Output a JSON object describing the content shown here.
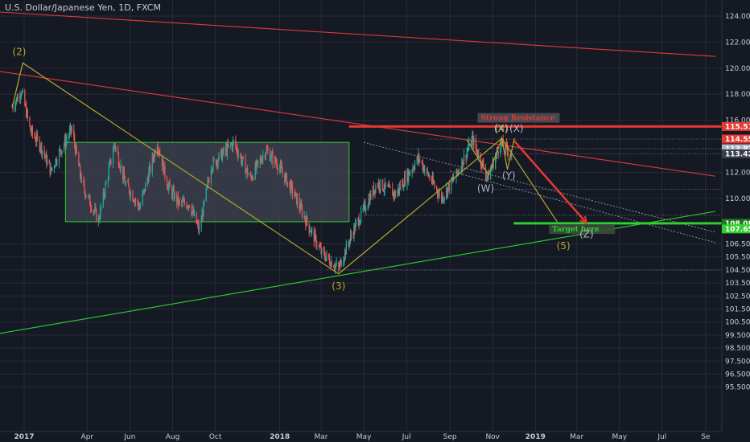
{
  "symbol_title": "U.S. Dollar/Japanese Yen, 1D, FXCM",
  "colors": {
    "background": "#151924",
    "bull": "#26a69a",
    "bear": "#ef5350",
    "grid": "#262b38",
    "resistance": "#e53935",
    "support": "#2fd02f",
    "wave": "#b8a72a",
    "corrective": "#b0b7c3",
    "range_box": "#3b3f4c"
  },
  "chart_data": {
    "type": "candlestick",
    "title": "U.S. Dollar/Japanese Yen, 1D, FXCM",
    "x_axis": {
      "start": "2017-01-01",
      "end": "2019-09-15",
      "ticks": [
        {
          "label": "2017",
          "date": "2017-01-01",
          "bold": true
        },
        {
          "label": "Apr",
          "date": "2017-04-01"
        },
        {
          "label": "Jun",
          "date": "2017-06-01"
        },
        {
          "label": "Aug",
          "date": "2017-08-01"
        },
        {
          "label": "Oct",
          "date": "2017-10-01"
        },
        {
          "label": "2018",
          "date": "2018-01-01",
          "bold": true
        },
        {
          "label": "Mar",
          "date": "2018-03-01"
        },
        {
          "label": "May",
          "date": "2018-05-01"
        },
        {
          "label": "Jul",
          "date": "2018-07-01"
        },
        {
          "label": "Sep",
          "date": "2018-09-01"
        },
        {
          "label": "Nov",
          "date": "2018-11-01"
        },
        {
          "label": "2019",
          "date": "2019-01-01",
          "bold": true
        },
        {
          "label": "Mar",
          "date": "2019-03-01"
        },
        {
          "label": "May",
          "date": "2019-05-01"
        },
        {
          "label": "Jul",
          "date": "2019-07-01"
        },
        {
          "label": "Se",
          "date": "2019-09-01"
        }
      ]
    },
    "y_axis": {
      "min": 95.0,
      "max": 124.5,
      "ticks": [
        "124.000",
        "122.000",
        "120.000",
        "118.000",
        "116.000",
        "114.557",
        "113.812",
        "113.421",
        "112.000",
        "110.000",
        "108.084",
        "107.652",
        "106.500",
        "105.500",
        "104.500",
        "103.500",
        "102.500",
        "101.500",
        "100.500",
        "99.500",
        "98.500",
        "97.500",
        "96.500",
        "95.500"
      ]
    },
    "price_path": [
      [
        "2016-12-15",
        117.0
      ],
      [
        "2016-12-28",
        118.3
      ],
      [
        "2017-01-10",
        115.2
      ],
      [
        "2017-01-25",
        114.0
      ],
      [
        "2017-02-08",
        112.1
      ],
      [
        "2017-02-20",
        113.5
      ],
      [
        "2017-03-10",
        115.3
      ],
      [
        "2017-03-25",
        111.0
      ],
      [
        "2017-04-17",
        108.3
      ],
      [
        "2017-05-10",
        114.2
      ],
      [
        "2017-05-25",
        111.2
      ],
      [
        "2017-06-15",
        109.3
      ],
      [
        "2017-07-10",
        114.3
      ],
      [
        "2017-07-25",
        111.0
      ],
      [
        "2017-08-10",
        109.6
      ],
      [
        "2017-08-25",
        109.6
      ],
      [
        "2017-09-08",
        107.5
      ],
      [
        "2017-09-25",
        112.5
      ],
      [
        "2017-10-27",
        114.3
      ],
      [
        "2017-11-20",
        111.5
      ],
      [
        "2017-12-12",
        113.7
      ],
      [
        "2017-12-29",
        112.6
      ],
      [
        "2018-01-20",
        110.5
      ],
      [
        "2018-02-10",
        108.0
      ],
      [
        "2018-03-02",
        105.8
      ],
      [
        "2018-03-26",
        104.6
      ],
      [
        "2018-04-15",
        107.4
      ],
      [
        "2018-05-20",
        111.2
      ],
      [
        "2018-06-15",
        110.3
      ],
      [
        "2018-07-18",
        113.1
      ],
      [
        "2018-08-20",
        110.0
      ],
      [
        "2018-09-10",
        111.8
      ],
      [
        "2018-10-03",
        114.5
      ],
      [
        "2018-10-25",
        111.6
      ],
      [
        "2018-11-12",
        114.2
      ],
      [
        "2018-11-28",
        113.4
      ]
    ],
    "drawings": {
      "range_box": {
        "from": "2017-03-01",
        "to": "2018-04-10",
        "top": 114.3,
        "bottom": 108.2
      },
      "horizontal_lines": [
        {
          "name": "resistance",
          "price": 115.517,
          "from": "2018-04-10",
          "to": "2019-09-15"
        },
        {
          "name": "support",
          "price": 108.084,
          "from": "2018-12-01",
          "to": "2019-09-15"
        }
      ],
      "trendlines": [
        {
          "name": "red-trendline-upper",
          "from": [
            "2016-10-01",
            124.5
          ],
          "to": [
            "2019-09-15",
            120.9
          ]
        },
        {
          "name": "red-trendline-lower",
          "from": [
            "2016-10-01",
            120.2
          ],
          "to": [
            "2019-09-15",
            111.7
          ]
        },
        {
          "name": "green-trendline",
          "from": [
            "2016-10-01",
            99.1
          ],
          "to": [
            "2019-09-15",
            109.0
          ]
        },
        {
          "name": "dotted-channel-1",
          "from": [
            "2018-05-01",
            114.3
          ],
          "to": [
            "2019-09-15",
            107.4
          ]
        },
        {
          "name": "dotted-channel-2",
          "from": [
            "2018-09-01",
            112.1
          ],
          "to": [
            "2019-09-15",
            106.6
          ]
        }
      ],
      "elliott_impulse": [
        [
          "2016-12-15",
          117.0
        ],
        [
          "2016-12-30",
          120.4
        ],
        [
          "2018-03-26",
          104.2
        ],
        [
          "2018-11-14",
          114.6
        ],
        [
          "2019-02-01",
          108.2
        ]
      ],
      "wxyz": [
        [
          "2018-09-25",
          114.5
        ],
        [
          "2018-10-26",
          111.8
        ],
        [
          "2018-11-14",
          114.6
        ],
        [
          "2018-11-22",
          112.2
        ],
        [
          "2018-12-02",
          114.6
        ],
        [
          "2019-03-15",
          108.2
        ]
      ],
      "projection_arrow": {
        "from": [
          "2018-12-02",
          114.4
        ],
        "to": [
          "2019-03-15",
          108.1
        ]
      },
      "small_dotted_levels": [
        {
          "price": 114.557,
          "from": "2018-08-01"
        },
        {
          "price": 113.812,
          "from": "2018-07-01"
        },
        {
          "price": 113.421,
          "from": "2018-10-01"
        },
        {
          "price": 110.7,
          "from": "2018-11-01"
        },
        {
          "price": 108.7,
          "from": "2018-05-01"
        },
        {
          "price": 104.5,
          "from": "2018-03-10"
        }
      ]
    },
    "annotations": [
      {
        "text": "(2)",
        "date": "2016-12-25",
        "price": 121.0,
        "color": "wave"
      },
      {
        "text": "(3)",
        "date": "2018-03-26",
        "price": 103.0,
        "color": "wave"
      },
      {
        "text": "(4)",
        "date": "2018-11-14",
        "price": 115.1,
        "color": "wave"
      },
      {
        "text": "(5)",
        "date": "2019-02-10",
        "price": 106.1,
        "color": "wave"
      },
      {
        "text": "(W)",
        "date": "2018-10-22",
        "price": 110.5,
        "color": "corrective"
      },
      {
        "text": "(X)",
        "date": "2018-11-13",
        "price": 115.1,
        "color": "corrective"
      },
      {
        "text": "(Y)",
        "date": "2018-11-24",
        "price": 111.5,
        "color": "corrective"
      },
      {
        "text": "(X)",
        "date": "2018-12-05",
        "price": 115.1,
        "color": "corrective"
      },
      {
        "text": "(Z)",
        "date": "2019-03-15",
        "price": 107.0,
        "color": "corrective"
      }
    ],
    "notes": [
      {
        "text": "Strong Resistance",
        "date": "2018-10-15",
        "price": 116.0,
        "color": "resistance"
      },
      {
        "text": "Target here",
        "date": "2019-01-25",
        "price": 107.45,
        "color": "support"
      }
    ],
    "price_labels": [
      {
        "text": "115.517",
        "price": 115.517,
        "bg": "#e53935"
      },
      {
        "text": "114.557",
        "price": 114.557,
        "bg": "#e53935"
      },
      {
        "text": "113.812",
        "price": 113.812,
        "bg": "#b0b7c3"
      },
      {
        "text": "113.421",
        "price": 113.421,
        "bg": "#3a3f4b"
      },
      {
        "text": "108.084",
        "price": 108.084,
        "bg": "#1a7d1a"
      },
      {
        "text": "107.652",
        "price": 107.652,
        "bg": "#2fd02f"
      }
    ]
  }
}
